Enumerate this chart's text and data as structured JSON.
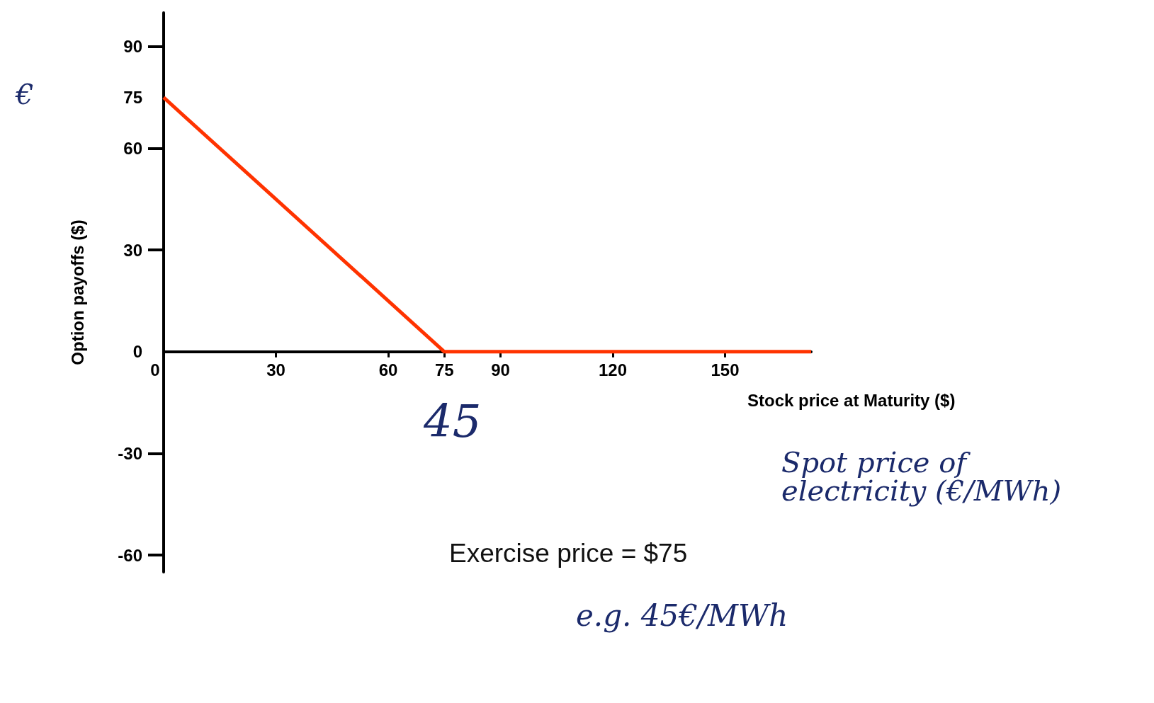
{
  "chart_data": {
    "type": "line",
    "xlabel": "Stock price at Maturity ($)",
    "ylabel": "Option payoffs ($)",
    "x": [
      0,
      75,
      173
    ],
    "series": [
      {
        "color": "#ff3300",
        "values": [
          75,
          0,
          0
        ]
      }
    ],
    "xlim": [
      0,
      173
    ],
    "xticks": [
      0,
      30,
      60,
      75,
      90,
      120,
      150
    ],
    "ylim": [
      -65,
      100
    ],
    "yticks": [
      -60,
      -30,
      0,
      30,
      60,
      75,
      90
    ],
    "grid": false,
    "marker": "none",
    "line_style": "solid",
    "annotations": [
      "Exercise price = $75",
      "€",
      "45",
      "Spot price of electricity (€/MWh)",
      "e.g. 45€/MWh"
    ]
  }
}
